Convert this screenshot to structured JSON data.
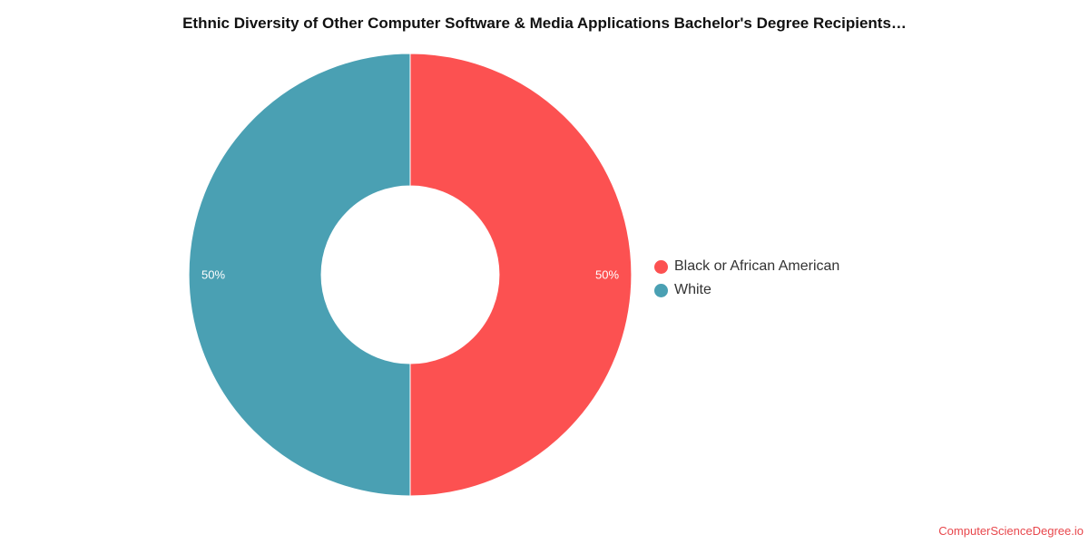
{
  "chart_data": {
    "type": "pie",
    "title": "Ethnic Diversity of Other Computer Software & Media Applications Bachelor's Degree Recipients…",
    "donut": true,
    "legend_position": "right",
    "slices": [
      {
        "label": "Black or African American",
        "value": 50,
        "value_label": "50%",
        "color": "#fc5151"
      },
      {
        "label": "White",
        "value": 50,
        "value_label": "50%",
        "color": "#4aa0b3"
      }
    ]
  },
  "watermark": "ComputerScienceDegree.io"
}
